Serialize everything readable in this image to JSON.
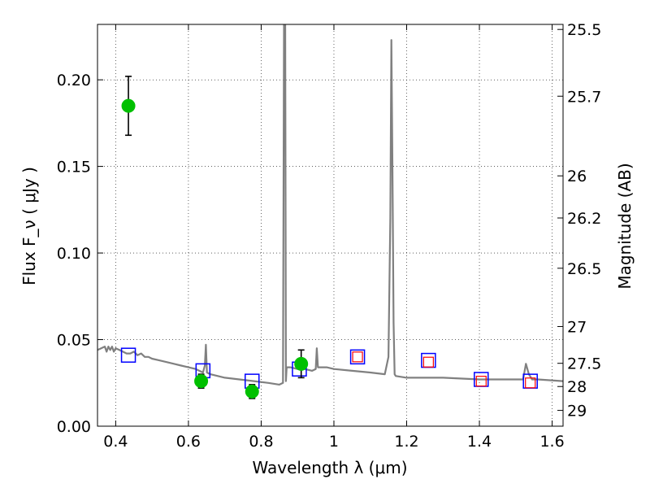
{
  "chart_data": {
    "type": "scatter",
    "title": "",
    "xlabel": "Wavelength  λ (μm)",
    "ylabel": "Flux  F_ν  ( μJy )",
    "y2label": "Magnitude (AB)",
    "xlim": [
      0.35,
      1.63
    ],
    "ylim": [
      0.0,
      0.232
    ],
    "grid": true,
    "x_ticks": [
      {
        "value": 0.4,
        "label": "0.4"
      },
      {
        "value": 0.6,
        "label": "0.6"
      },
      {
        "value": 0.8,
        "label": "0.8"
      },
      {
        "value": 1.0,
        "label": "1"
      },
      {
        "value": 1.2,
        "label": "1.2"
      },
      {
        "value": 1.4,
        "label": "1.4"
      },
      {
        "value": 1.6,
        "label": "1.6"
      }
    ],
    "y_ticks": [
      {
        "value": 0.0,
        "label": "0.00"
      },
      {
        "value": 0.05,
        "label": "0.05"
      },
      {
        "value": 0.1,
        "label": "0.10"
      },
      {
        "value": 0.15,
        "label": "0.15"
      },
      {
        "value": 0.2,
        "label": "0.20"
      }
    ],
    "y2_ticks": [
      {
        "value": 25.5,
        "label": "25.5"
      },
      {
        "value": 25.7,
        "label": "25.7"
      },
      {
        "value": 26,
        "label": "26"
      },
      {
        "value": 26.2,
        "label": "26.2"
      },
      {
        "value": 26.5,
        "label": "26.5"
      },
      {
        "value": 27,
        "label": "27"
      },
      {
        "value": 27.5,
        "label": "27.5"
      },
      {
        "value": 28,
        "label": "28"
      },
      {
        "value": 29,
        "label": "29"
      }
    ],
    "series": [
      {
        "kind": "line",
        "color": "#808080",
        "x": [
          0.35,
          0.36,
          0.37,
          0.375,
          0.38,
          0.385,
          0.39,
          0.395,
          0.4,
          0.41,
          0.42,
          0.43,
          0.44,
          0.45,
          0.46,
          0.47,
          0.48,
          0.49,
          0.5,
          0.52,
          0.54,
          0.56,
          0.58,
          0.6,
          0.62,
          0.64,
          0.645,
          0.648,
          0.651,
          0.66,
          0.7,
          0.74,
          0.78,
          0.82,
          0.85,
          0.86,
          0.863,
          0.866,
          0.868,
          0.87,
          0.88,
          0.9,
          0.92,
          0.94,
          0.95,
          0.953,
          0.956,
          0.96,
          0.98,
          1.0,
          1.05,
          1.1,
          1.14,
          1.15,
          1.155,
          1.158,
          1.161,
          1.164,
          1.167,
          1.17,
          1.2,
          1.3,
          1.4,
          1.5,
          1.52,
          1.528,
          1.536,
          1.545,
          1.56,
          1.63
        ],
        "y": [
          0.044,
          0.045,
          0.046,
          0.043,
          0.046,
          0.044,
          0.046,
          0.043,
          0.045,
          0.044,
          0.043,
          0.042,
          0.042,
          0.043,
          0.041,
          0.042,
          0.04,
          0.04,
          0.039,
          0.038,
          0.037,
          0.036,
          0.035,
          0.034,
          0.033,
          0.031,
          0.035,
          0.047,
          0.031,
          0.03,
          0.028,
          0.027,
          0.026,
          0.025,
          0.024,
          0.025,
          0.24,
          0.24,
          0.026,
          0.034,
          0.034,
          0.033,
          0.033,
          0.032,
          0.033,
          0.045,
          0.034,
          0.034,
          0.034,
          0.033,
          0.032,
          0.031,
          0.03,
          0.04,
          0.12,
          0.223,
          0.15,
          0.06,
          0.03,
          0.029,
          0.028,
          0.028,
          0.027,
          0.027,
          0.027,
          0.036,
          0.03,
          0.027,
          0.027,
          0.026
        ]
      },
      {
        "kind": "points",
        "name": "",
        "marker": "circle",
        "color": "#00c000",
        "x": [
          0.435,
          0.635,
          0.775,
          0.91
        ],
        "y": [
          0.185,
          0.026,
          0.02,
          0.036
        ],
        "err": [
          0.017,
          0.004,
          0.004,
          0.008
        ]
      },
      {
        "kind": "points",
        "name": "",
        "marker": "square-open",
        "color": "#0000ff",
        "x": [
          0.435,
          0.64,
          0.775,
          0.905,
          1.065,
          1.26,
          1.405,
          1.54
        ],
        "y": [
          0.041,
          0.032,
          0.026,
          0.033,
          0.04,
          0.038,
          0.027,
          0.026
        ]
      },
      {
        "kind": "points",
        "name": "",
        "marker": "square-open-small",
        "color": "#ff0000",
        "x": [
          1.065,
          1.26,
          1.405,
          1.54
        ],
        "y": [
          0.04,
          0.037,
          0.026,
          0.025
        ]
      }
    ]
  }
}
